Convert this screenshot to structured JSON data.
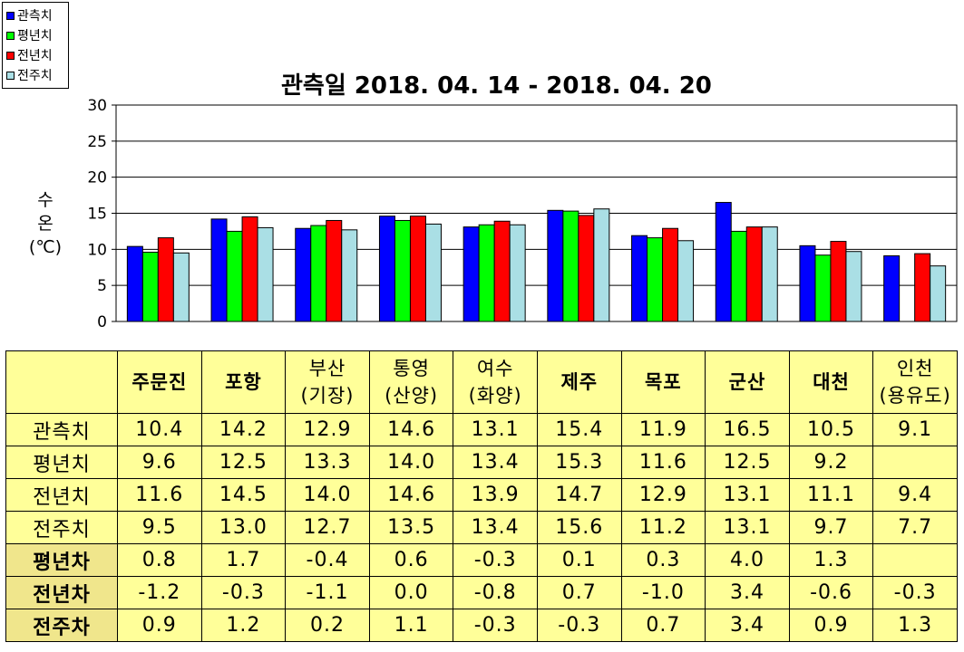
{
  "chart_data": {
    "type": "bar",
    "title": "관측일 2018. 04. 14 - 2018. 04. 20",
    "ylabel": [
      "수",
      "온",
      "(℃)"
    ],
    "ylim": [
      0,
      30
    ],
    "yticks": [
      0,
      5,
      10,
      15,
      20,
      25,
      30
    ],
    "grid": true,
    "legend_position": "top-left",
    "categories": [
      "주문진",
      "포항",
      "부산\n(기장)",
      "통영\n(산양)",
      "여수\n(화양)",
      "제주",
      "목포",
      "군산",
      "대천",
      "인천\n(용유도)"
    ],
    "series": [
      {
        "name": "관측치",
        "color": "#0000ff",
        "values": [
          10.4,
          14.2,
          12.9,
          14.6,
          13.1,
          15.4,
          11.9,
          16.5,
          10.5,
          9.1
        ]
      },
      {
        "name": "평년치",
        "color": "#00ff00",
        "values": [
          9.6,
          12.5,
          13.3,
          14.0,
          13.4,
          15.3,
          11.6,
          12.5,
          9.2,
          null
        ]
      },
      {
        "name": "전년치",
        "color": "#ff0000",
        "values": [
          11.6,
          14.5,
          14.0,
          14.6,
          13.9,
          14.7,
          12.9,
          13.1,
          11.1,
          9.4
        ]
      },
      {
        "name": "전주치",
        "color": "#aadfe5",
        "values": [
          9.5,
          13.0,
          12.7,
          13.5,
          13.4,
          15.6,
          11.2,
          13.1,
          9.7,
          7.7
        ]
      }
    ]
  },
  "table": {
    "stations": [
      [
        "주문진"
      ],
      [
        "포항"
      ],
      [
        "부산",
        "(기장)"
      ],
      [
        "통영",
        "(산양)"
      ],
      [
        "여수",
        "(화양)"
      ],
      [
        "제주"
      ],
      [
        "목포"
      ],
      [
        "군산"
      ],
      [
        "대천"
      ],
      [
        "인천",
        "(용유도)"
      ]
    ],
    "rows": [
      {
        "label": "관측치",
        "diff": false,
        "values": [
          "10.4",
          "14.2",
          "12.9",
          "14.6",
          "13.1",
          "15.4",
          "11.9",
          "16.5",
          "10.5",
          "9.1"
        ]
      },
      {
        "label": "평년치",
        "diff": false,
        "values": [
          "9.6",
          "12.5",
          "13.3",
          "14.0",
          "13.4",
          "15.3",
          "11.6",
          "12.5",
          "9.2",
          ""
        ]
      },
      {
        "label": "전년치",
        "diff": false,
        "values": [
          "11.6",
          "14.5",
          "14.0",
          "14.6",
          "13.9",
          "14.7",
          "12.9",
          "13.1",
          "11.1",
          "9.4"
        ]
      },
      {
        "label": "전주치",
        "diff": false,
        "values": [
          "9.5",
          "13.0",
          "12.7",
          "13.5",
          "13.4",
          "15.6",
          "11.2",
          "13.1",
          "9.7",
          "7.7"
        ]
      },
      {
        "label": "평년차",
        "diff": true,
        "values": [
          "0.8",
          "1.7",
          "-0.4",
          "0.6",
          "-0.3",
          "0.1",
          "0.3",
          "4.0",
          "1.3",
          ""
        ]
      },
      {
        "label": "전년차",
        "diff": true,
        "values": [
          "-1.2",
          "-0.3",
          "-1.1",
          "0.0",
          "-0.8",
          "0.7",
          "-1.0",
          "3.4",
          "-0.6",
          "-0.3"
        ]
      },
      {
        "label": "전주차",
        "diff": true,
        "values": [
          "0.9",
          "1.2",
          "0.2",
          "1.1",
          "-0.3",
          "-0.3",
          "0.7",
          "3.4",
          "0.9",
          "1.3"
        ]
      }
    ]
  }
}
